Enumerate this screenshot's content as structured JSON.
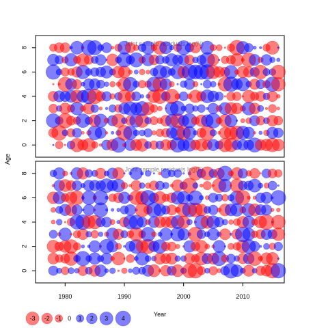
{
  "chart_data": {
    "type": "scatter",
    "subtype": "bubble-residuals",
    "ylabel": "Age",
    "xlabel": "Year",
    "xlim": [
      1975,
      2017
    ],
    "x_ticks": [
      1980,
      1990,
      2000,
      2010
    ],
    "y_ticks": [
      0,
      2,
      4,
      6,
      8
    ],
    "ylim": [
      -1,
      9
    ],
    "colors": {
      "positive": "#ff0000",
      "negative": "#0000ff",
      "alpha": 0.5
    },
    "panels": [
      {
        "title": "Joint sample residuals log(N)",
        "seed": 12345
      },
      {
        "title": "Joint sample residuals log(F)",
        "seed": 67890
      }
    ],
    "years": [
      1978,
      2016
    ],
    "ages": [
      0,
      1,
      2,
      3,
      4,
      5,
      6,
      7,
      8
    ],
    "legend": {
      "values": [
        -3,
        -2,
        -1,
        0,
        1,
        2,
        3,
        4
      ],
      "labels": [
        "-3",
        "-2",
        "-1",
        "0",
        "1",
        "2",
        "3",
        "4"
      ]
    }
  }
}
